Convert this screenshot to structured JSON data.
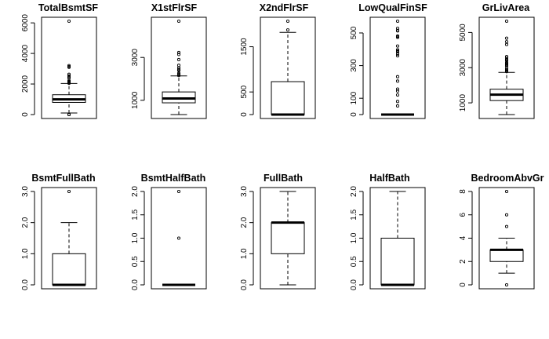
{
  "chart_data": [
    {
      "type": "boxplot",
      "title": "TotalBsmtSF",
      "ylim": [
        0,
        6110
      ],
      "yticks": [
        0,
        2000,
        4000,
        6000
      ],
      "yticklabels": [
        "0",
        "2000",
        "4000",
        "6000"
      ],
      "stats": {
        "min": 105,
        "q1": 796,
        "median": 992,
        "q3": 1298,
        "max": 2035
      },
      "outliers": [
        0,
        0,
        0,
        2046,
        2078,
        2110,
        2136,
        2158,
        2217,
        2392,
        2444,
        2524,
        2633,
        3094,
        3138,
        3200,
        6110
      ]
    },
    {
      "type": "boxplot",
      "title": "X1stFlrSF",
      "ylim": [
        334,
        4692
      ],
      "yticks": [
        1000,
        3000
      ],
      "yticklabels": [
        "1000",
        "3000"
      ],
      "stats": {
        "min": 334,
        "q1": 882,
        "median": 1087,
        "q3": 1391,
        "max": 2136
      },
      "outliers": [
        2158,
        2207,
        2217,
        2259,
        2392,
        2402,
        2411,
        2444,
        2515,
        2633,
        2898,
        3138,
        3228,
        4692
      ]
    },
    {
      "type": "boxplot",
      "title": "X2ndFlrSF",
      "ylim": [
        0,
        2065
      ],
      "yticks": [
        0,
        500,
        1500
      ],
      "yticklabels": [
        "0",
        "500",
        "1500"
      ],
      "stats": {
        "min": 0,
        "q1": 0,
        "median": 0,
        "q3": 728,
        "max": 1818
      },
      "outliers": [
        1872,
        2065
      ]
    },
    {
      "type": "boxplot",
      "title": "LowQualFinSF",
      "ylim": [
        0,
        572
      ],
      "yticks": [
        0,
        100,
        300,
        500
      ],
      "yticklabels": [
        "0",
        "100",
        "300",
        "500"
      ],
      "stats": {
        "min": 0,
        "q1": 0,
        "median": 0,
        "q3": 0,
        "max": 0
      },
      "outliers": [
        53,
        80,
        120,
        144,
        156,
        205,
        232,
        360,
        371,
        384,
        390,
        397,
        420,
        473,
        479,
        481,
        513,
        514,
        515,
        528,
        572
      ]
    },
    {
      "type": "boxplot",
      "title": "GrLivArea",
      "ylim": [
        334,
        5642
      ],
      "yticks": [
        1000,
        3000,
        5000
      ],
      "yticklabels": [
        "1000",
        "3000",
        "5000"
      ],
      "stats": {
        "min": 334,
        "q1": 1130,
        "median": 1464,
        "q3": 1777,
        "max": 2730
      },
      "outliers": [
        2775,
        2822,
        2872,
        2946,
        3082,
        3140,
        3194,
        3228,
        3279,
        3395,
        3447,
        3493,
        3608,
        3627,
        4316,
        4476,
        4676,
        5642
      ]
    },
    {
      "type": "boxplot",
      "title": "BsmtFullBath",
      "ylim": [
        0,
        3
      ],
      "yticks": [
        0,
        1,
        2,
        3
      ],
      "yticklabels": [
        "0.0",
        "1.0",
        "2.0",
        "3.0"
      ],
      "stats": {
        "min": 0,
        "q1": 0,
        "median": 0,
        "q3": 1,
        "max": 2
      },
      "outliers": [
        3
      ]
    },
    {
      "type": "boxplot",
      "title": "BsmtHalfBath",
      "ylim": [
        0,
        2
      ],
      "yticks": [
        0,
        0.5,
        1,
        1.5,
        2
      ],
      "yticklabels": [
        "0.0",
        "0.5",
        "1.0",
        "1.5",
        "2.0"
      ],
      "stats": {
        "min": 0,
        "q1": 0,
        "median": 0,
        "q3": 0,
        "max": 0
      },
      "outliers": [
        1,
        2
      ]
    },
    {
      "type": "boxplot",
      "title": "FullBath",
      "ylim": [
        0,
        3
      ],
      "yticks": [
        0,
        1,
        2,
        3
      ],
      "yticklabels": [
        "0.0",
        "1.0",
        "2.0",
        "3.0"
      ],
      "stats": {
        "min": 0,
        "q1": 1,
        "median": 2,
        "q3": 2,
        "max": 3
      },
      "outliers": []
    },
    {
      "type": "boxplot",
      "title": "HalfBath",
      "ylim": [
        0,
        2
      ],
      "yticks": [
        0,
        0.5,
        1,
        1.5,
        2
      ],
      "yticklabels": [
        "0.0",
        "0.5",
        "1.0",
        "1.5",
        "2.0"
      ],
      "stats": {
        "min": 0,
        "q1": 0,
        "median": 0,
        "q3": 1,
        "max": 2
      },
      "outliers": []
    },
    {
      "type": "boxplot",
      "title": "BedroomAbvGr",
      "ylim": [
        0,
        8
      ],
      "yticks": [
        0,
        2,
        4,
        6,
        8
      ],
      "yticklabels": [
        "0",
        "2",
        "4",
        "6",
        "8"
      ],
      "stats": {
        "min": 1,
        "q1": 2,
        "median": 3,
        "q3": 3,
        "max": 4
      },
      "outliers": [
        0,
        5,
        6,
        8
      ]
    }
  ]
}
